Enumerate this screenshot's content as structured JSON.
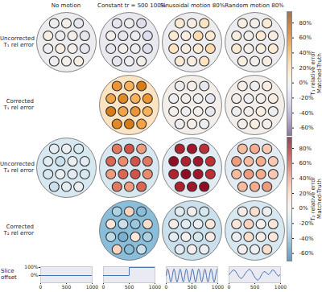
{
  "chart_data": {
    "type": "heatmap_grid",
    "columns": [
      "No motion",
      "Constant tr = 500 100%",
      "Sinusoidal motion 80%",
      "Random motion 80%"
    ],
    "colorbars": [
      {
        "label": [
          "T₁ relative error",
          "Matched-Truth"
        ],
        "lim": [
          -70,
          95
        ],
        "ticks": [
          {
            "value": 80,
            "label": "80%"
          },
          {
            "value": 60,
            "label": "60%"
          },
          {
            "value": 40,
            "label": "40%"
          },
          {
            "value": 20,
            "label": "20%"
          },
          {
            "value": 0,
            "label": "0%"
          },
          {
            "value": -20,
            "label": "-20%"
          },
          {
            "value": -40,
            "label": "-40%"
          },
          {
            "value": -60,
            "label": "-60%"
          }
        ]
      },
      {
        "label": [
          "T₂ relative error",
          "Matched-Truth"
        ],
        "lim": [
          -70,
          95
        ],
        "ticks": [
          {
            "value": 80,
            "label": "80%"
          },
          {
            "value": 60,
            "label": "60%"
          },
          {
            "value": 40,
            "label": "40%"
          },
          {
            "value": 20,
            "label": "20%"
          },
          {
            "value": 0,
            "label": "0%"
          },
          {
            "value": -20,
            "label": "-20%"
          },
          {
            "value": -40,
            "label": "-40%"
          },
          {
            "value": -60,
            "label": "-60%"
          }
        ]
      }
    ],
    "rows": [
      {
        "label": [
          "Uncorrected",
          "T₁ rel error"
        ],
        "colorbar": 0,
        "cells": [
          {
            "background": -5,
            "vials": [
              -5,
              0,
              -10,
              5,
              -5,
              0,
              -10,
              -5,
              5,
              0,
              -10,
              -5,
              0,
              5
            ]
          },
          {
            "background": -8,
            "vials": [
              -10,
              -5,
              -15,
              0,
              -10,
              -5,
              -15,
              -10,
              0,
              -5,
              -15,
              -10,
              -5,
              0
            ]
          },
          {
            "background": -5,
            "vials": [
              10,
              5,
              15,
              10,
              5,
              20,
              10,
              15,
              5,
              10,
              20,
              10,
              5,
              15
            ]
          },
          {
            "background": -5,
            "vials": [
              5,
              0,
              10,
              5,
              0,
              10,
              5,
              10,
              0,
              5,
              10,
              5,
              0,
              5
            ]
          }
        ]
      },
      {
        "label": [
          "Corrected",
          "T₁ rel error"
        ],
        "colorbar": 0,
        "cells": [
          null,
          {
            "background": 15,
            "vials": [
              50,
              40,
              60,
              45,
              55,
              40,
              50,
              60,
              45,
              50,
              40,
              55,
              60,
              45
            ]
          },
          {
            "background": 0,
            "vials": [
              -5,
              0,
              -10,
              -5,
              0,
              -5,
              -10,
              0,
              -5,
              0,
              -10,
              -5,
              0,
              -5
            ]
          },
          {
            "background": 0,
            "vials": [
              0,
              -5,
              5,
              0,
              -5,
              0,
              5,
              -5,
              0,
              5,
              -5,
              0,
              5,
              0
            ]
          }
        ]
      },
      {
        "label": [
          "Uncorrected",
          "T₂ rel error"
        ],
        "colorbar": 1,
        "cells": [
          {
            "background": -15,
            "vials": [
              -10,
              -5,
              -15,
              -10,
              -20,
              -5,
              -10,
              -15,
              -5,
              -10,
              -15,
              -20,
              -10,
              -5
            ]
          },
          {
            "background": -15,
            "vials": [
              50,
              60,
              40,
              55,
              45,
              60,
              50,
              40,
              55,
              60,
              45,
              50,
              40,
              55
            ]
          },
          {
            "background": -10,
            "vials": [
              75,
              80,
              70,
              85,
              75,
              80,
              70,
              75,
              85,
              80,
              70,
              75,
              80,
              85
            ]
          },
          {
            "background": -10,
            "vials": [
              30,
              35,
              25,
              40,
              30,
              35,
              25,
              30,
              40,
              35,
              25,
              30,
              35,
              40
            ]
          }
        ]
      },
      {
        "label": [
          "Corrected",
          "T₂ rel error"
        ],
        "colorbar": 1,
        "cells": [
          null,
          {
            "background": -40,
            "vials": [
              -30,
              20,
              -40,
              10,
              -20,
              -35,
              15,
              -25,
              -45,
              10,
              -30,
              20,
              -40,
              -20
            ]
          },
          {
            "background": -20,
            "vials": [
              -10,
              0,
              -15,
              5,
              -10,
              -5,
              10,
              -10,
              0,
              -15,
              5,
              -10,
              0,
              -5
            ]
          },
          {
            "background": -15,
            "vials": [
              5,
              15,
              -5,
              10,
              20,
              0,
              10,
              -5,
              15,
              5,
              10,
              0,
              -5,
              15
            ]
          }
        ]
      }
    ],
    "slice_offset": {
      "label": [
        "Slice",
        "offset"
      ],
      "xlim": [
        0,
        1000
      ],
      "xticks": [
        0,
        500,
        1000
      ],
      "ylim": [
        -90,
        110
      ],
      "yticks": [
        {
          "value": 100,
          "label": "100%"
        },
        {
          "value": 0,
          "label": "0%"
        }
      ],
      "series": [
        {
          "color": "#4c72b0",
          "x": [
            0,
            1000
          ],
          "values": [
            0,
            0
          ]
        },
        {
          "color": "#4c72b0",
          "x": [
            0,
            500,
            500,
            1000
          ],
          "values": [
            0,
            0,
            100,
            100
          ]
        },
        {
          "color": "#4c72b0",
          "x": [
            0,
            15,
            30,
            45,
            60,
            75,
            90,
            105,
            120,
            135,
            150,
            165,
            180,
            195,
            210,
            225,
            240,
            255,
            270,
            285,
            300,
            315,
            330,
            345,
            360,
            375,
            390,
            405,
            420,
            435,
            450,
            465,
            480,
            495,
            510,
            525,
            540,
            555,
            570,
            585,
            600,
            615,
            630,
            645,
            660,
            675,
            690,
            705,
            720,
            735,
            750,
            765,
            780,
            795,
            810,
            825,
            840,
            855,
            870,
            885,
            900,
            915,
            930,
            945,
            960,
            975,
            990,
            1000
          ],
          "values": [
            0,
            57,
            80,
            57,
            0,
            -57,
            -80,
            -57,
            0,
            57,
            80,
            57,
            0,
            -57,
            -80,
            -57,
            0,
            57,
            80,
            57,
            0,
            -57,
            -80,
            -57,
            0,
            57,
            80,
            57,
            0,
            -57,
            -80,
            -57,
            0,
            57,
            80,
            57,
            0,
            -57,
            -80,
            -57,
            0,
            57,
            80,
            57,
            0,
            -57,
            -80,
            -57,
            0,
            57,
            80,
            57,
            0,
            -57,
            -80,
            -57,
            0,
            57,
            80,
            57,
            0,
            -57,
            -80,
            -57,
            0,
            57,
            80,
            69
          ]
        },
        {
          "color": "#4c72b0",
          "x": [
            0,
            40,
            80,
            120,
            160,
            200,
            240,
            280,
            320,
            360,
            400,
            440,
            480,
            520,
            560,
            600,
            640,
            680,
            720,
            760,
            800,
            840,
            880,
            920,
            960,
            1000
          ],
          "values": [
            10,
            40,
            70,
            60,
            20,
            -20,
            -40,
            -10,
            30,
            60,
            80,
            50,
            0,
            -40,
            -60,
            -30,
            20,
            50,
            40,
            10,
            30,
            70,
            60,
            20,
            -10,
            20
          ]
        }
      ]
    }
  }
}
